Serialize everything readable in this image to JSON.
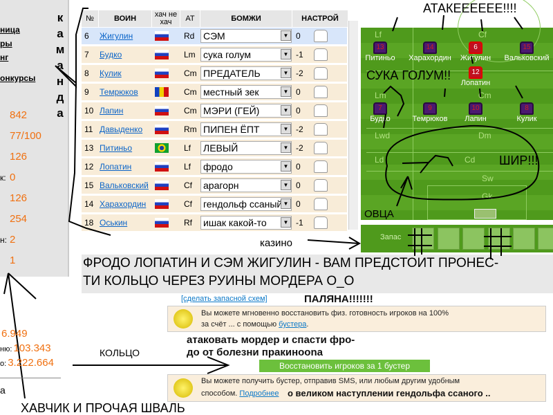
{
  "sidebar": {
    "links": [
      "ница",
      "ры",
      "нг",
      "онкурсы"
    ],
    "values": [
      "842",
      "77/100",
      "126",
      "0",
      "126",
      "254",
      "2",
      "1"
    ],
    "value_labels": [
      "",
      "",
      "",
      "к:",
      "",
      "",
      "н:",
      ""
    ],
    "komanda": [
      "к",
      "а",
      "м",
      "а",
      "н",
      "д",
      "а"
    ],
    "totals": [
      {
        "label": "",
        "value": "6.949"
      },
      {
        "label": "ню:",
        "value": "103.343"
      },
      {
        "label": "о:",
        "value": "3.222.664"
      }
    ],
    "footer_text": "а"
  },
  "table": {
    "headers": {
      "num": "№",
      "player": "ВОИН",
      "nat": "хач не хач",
      "pos": "AT",
      "role": "БОМЖИ",
      "form": "НАСТРОЙ"
    },
    "rows": [
      {
        "num": "6",
        "name": "Жигулин",
        "flag": "russia",
        "pos": "Rd",
        "role": "СЭМ",
        "form": "0",
        "selected": true
      },
      {
        "num": "7",
        "name": "Будко",
        "flag": "russia",
        "pos": "Lm",
        "role": "сука голум",
        "form": "-1"
      },
      {
        "num": "8",
        "name": "Кулик",
        "flag": "russia",
        "pos": "Cm",
        "role": "ПРЕДАТЕЛЬ",
        "form": "-2"
      },
      {
        "num": "9",
        "name": "Темрюков",
        "flag": "moldova",
        "pos": "Cm",
        "role": "местный зек",
        "form": "0"
      },
      {
        "num": "10",
        "name": "Лапин",
        "flag": "russia",
        "pos": "Cm",
        "role": "МЭРИ (ГЕЙ)",
        "form": "0"
      },
      {
        "num": "11",
        "name": "Давыденко",
        "flag": "russia",
        "pos": "Rm",
        "role": "ПИПЕН ЁПТ",
        "form": "-2"
      },
      {
        "num": "13",
        "name": "Питиньо",
        "flag": "brazil",
        "pos": "Lf",
        "role": "ЛЕВЫЙ",
        "form": "-2"
      },
      {
        "num": "12",
        "name": "Лопатин",
        "flag": "russia",
        "pos": "Lf",
        "role": "фродо",
        "form": "0"
      },
      {
        "num": "15",
        "name": "Вальковский",
        "flag": "russia",
        "pos": "Cf",
        "role": "арагорн",
        "form": "0"
      },
      {
        "num": "14",
        "name": "Харахордин",
        "flag": "russia",
        "pos": "Cf",
        "role": "гендольф ссаный",
        "form": "0"
      },
      {
        "num": "18",
        "name": "Оськин",
        "flag": "russia",
        "pos": "Rf",
        "role": "ишак какой-то",
        "form": "-1"
      }
    ]
  },
  "pitch": {
    "zones": [
      "Lf",
      "Cf",
      "Lm",
      "Cm",
      "Lwd",
      "Dm",
      "Ld",
      "Cd",
      "Sw",
      "Gk"
    ],
    "players": [
      {
        "name": "Питиньо",
        "number": "13"
      },
      {
        "name": "Харахордин",
        "number": "14"
      },
      {
        "name": "Жигулин",
        "number": "6",
        "highlight": true
      },
      {
        "name": "Вальковский",
        "number": "15"
      },
      {
        "name": "Лопатин",
        "number": "12",
        "highlight": true
      },
      {
        "name": "Будко",
        "number": "7"
      },
      {
        "name": "Темрюков",
        "number": "9"
      },
      {
        "name": "Лапин",
        "number": "10"
      },
      {
        "name": "Кулик",
        "number": "8"
      }
    ],
    "reserve_label": "Запас"
  },
  "annotations": {
    "attack": "АТАКЕЕЕЕЕЕ!!!!",
    "gollum": "СУКА ГОЛУМ!!",
    "shir": "ШИР!!!",
    "sheep": "ОВЦА",
    "casino": "казино",
    "ring": "КОЛЬЦО",
    "havchik": "ХАВЧИК И ПРОЧАЯ ШВАЛЬ",
    "polyana": "ПАЛЯНА!!!!!!!",
    "attack_mordor": "атаковать мордер и спасти фро-",
    "frodo_disease": "до от болезни пракинооna",
    "gandalf": "о великом наступлении гендольфа ссаного .."
  },
  "caption": {
    "line1": "ФРОДО ЛОПАТИН И СЭМ ЖИГУЛИН - ВАМ ПРЕДСТОИТ ПРОНЕС-",
    "line2": "ТИ КОЛЬЦО ЧЕРЕЗ РУИНЫ МОРДЕРА О_О"
  },
  "boost": {
    "scheme_link": "[сделать запасной схем]",
    "panel1_text": "Вы можете мгновенно восстановить физ. готовность игроков на 100%",
    "panel1_text2": "за счёт ... с помощью",
    "panel1_link": "бустера",
    "restore_button": "Восстановить игроков за 1 бустер",
    "panel2_text": "Вы можете получить бустер, отправив SMS, или любым другим удобным",
    "panel2_text2": "способом.",
    "panel2_link": "Подробнее"
  },
  "colors": {
    "accent_orange": "#f07010",
    "link": "#0a64c8",
    "pitch": "#4f9a1c",
    "button": "#6cc03c"
  }
}
